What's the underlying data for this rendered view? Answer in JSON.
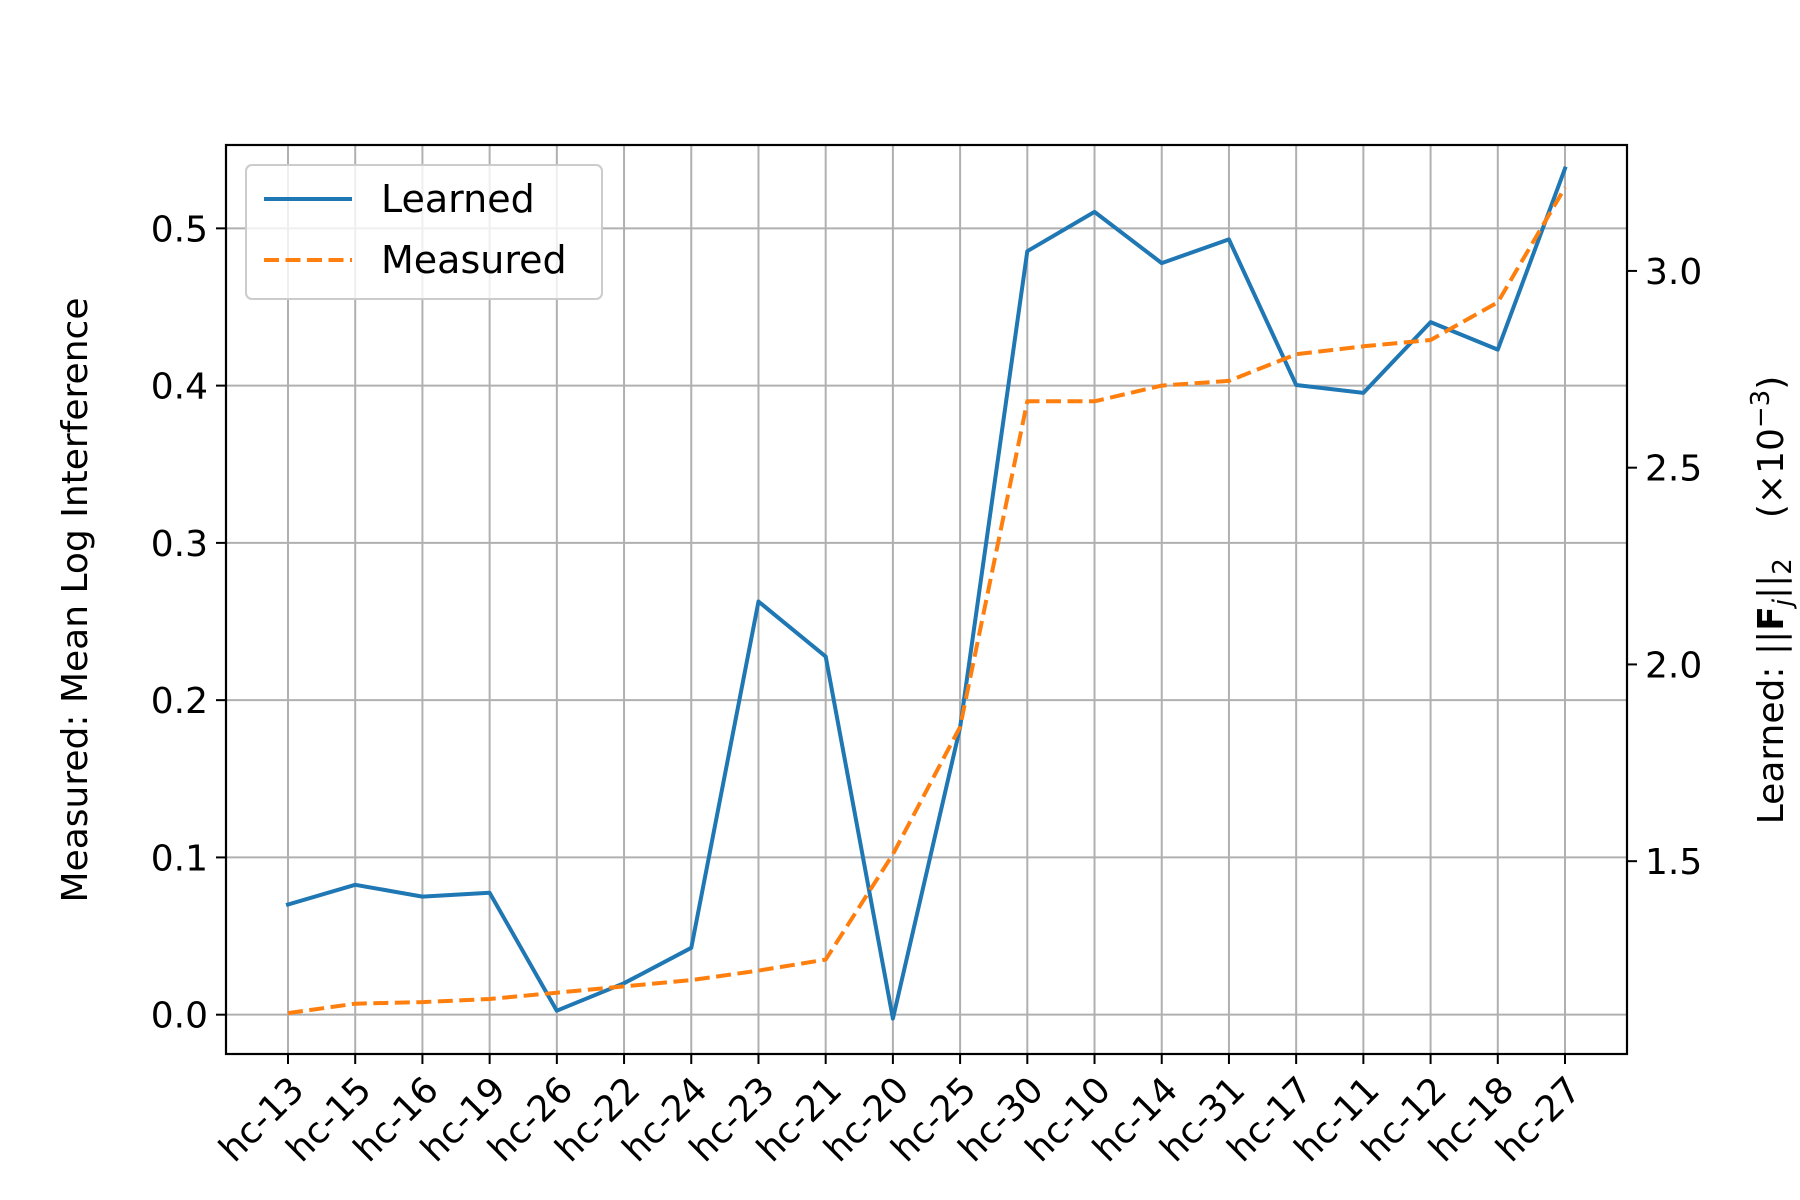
{
  "chart_data": {
    "type": "line",
    "categories": [
      "hc-13",
      "hc-15",
      "hc-16",
      "hc-19",
      "hc-26",
      "hc-22",
      "hc-24",
      "hc-23",
      "hc-21",
      "hc-20",
      "hc-25",
      "hc-30",
      "hc-10",
      "hc-14",
      "hc-31",
      "hc-17",
      "hc-11",
      "hc-12",
      "hc-18",
      "hc-27"
    ],
    "title": "",
    "xlabel": "",
    "ylabel": "Measured: Mean Log Interference",
    "y2label_prefix": "Learned: ",
    "y2label_unit": "(×10",
    "y2label_exp": "−3",
    "y2label_close": ")",
    "ylim": [
      -0.025,
      0.553
    ],
    "y2lim": [
      1.01,
      3.32
    ],
    "yticks": [
      0.0,
      0.1,
      0.2,
      0.3,
      0.4,
      0.5
    ],
    "ytick_labels": [
      "0.0",
      "0.1",
      "0.2",
      "0.3",
      "0.4",
      "0.5"
    ],
    "y2ticks": [
      1.5,
      2.0,
      2.5,
      3.0
    ],
    "y2tick_labels": [
      "1.5",
      "2.0",
      "2.5",
      "3.0"
    ],
    "grid": true,
    "legend_position": "top-left",
    "series": [
      {
        "name": "Learned",
        "axis": "right",
        "color": "#1f77b4",
        "style": "solid",
        "values": [
          1.39,
          1.44,
          1.41,
          1.42,
          1.12,
          1.19,
          1.28,
          2.16,
          2.02,
          1.1,
          1.84,
          3.05,
          3.15,
          3.02,
          3.08,
          2.71,
          2.69,
          2.87,
          2.8,
          3.26
        ]
      },
      {
        "name": "Measured",
        "axis": "left",
        "color": "#ff7f0e",
        "style": "dashed",
        "values": [
          0.001,
          0.007,
          0.008,
          0.01,
          0.014,
          0.018,
          0.022,
          0.028,
          0.035,
          0.102,
          0.183,
          0.39,
          0.39,
          0.4,
          0.403,
          0.42,
          0.425,
          0.429,
          0.453,
          0.526
        ]
      }
    ]
  }
}
